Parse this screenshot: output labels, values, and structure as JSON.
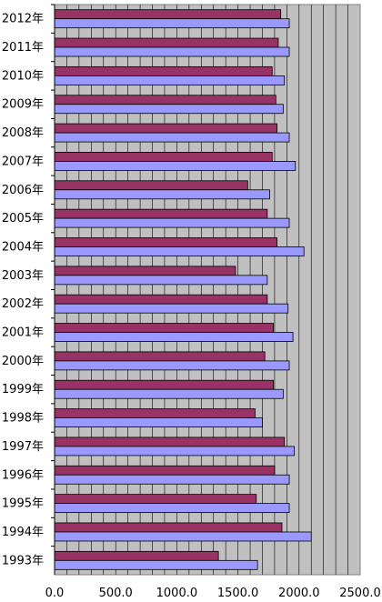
{
  "chart_data": {
    "type": "bar",
    "orientation": "horizontal",
    "categories": [
      "2012年",
      "2011年",
      "2010年",
      "2009年",
      "2008年",
      "2007年",
      "2006年",
      "2005年",
      "2004年",
      "2003年",
      "2002年",
      "2001年",
      "2000年",
      "1999年",
      "1998年",
      "1997年",
      "1996年",
      "1995年",
      "1994年",
      "1993年"
    ],
    "series": [
      {
        "color": "#993366",
        "values": [
          1850,
          1830,
          1780,
          1810,
          1820,
          1780,
          1580,
          1740,
          1820,
          1480,
          1740,
          1790,
          1720,
          1790,
          1640,
          1880,
          1800,
          1650,
          1860,
          1340
        ]
      },
      {
        "color": "#9999ff",
        "values": [
          1920,
          1920,
          1880,
          1870,
          1920,
          1970,
          1760,
          1920,
          2040,
          1740,
          1910,
          1950,
          1920,
          1870,
          1700,
          1960,
          1920,
          1920,
          2100,
          1660
        ]
      }
    ],
    "xlim": [
      0,
      2500
    ],
    "xticks": [
      "0.0",
      "500.0",
      "1000.0",
      "1500.0",
      "2000.0",
      "2500.0"
    ],
    "grid": true,
    "plot_background": "#c0c0c0"
  }
}
